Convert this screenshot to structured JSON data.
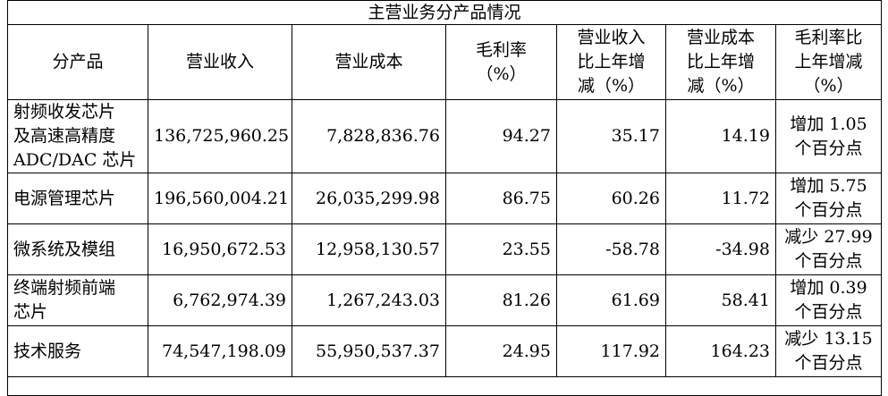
{
  "table_title": "主营业务分产品情况",
  "headers": [
    "分产品",
    "营业收入",
    "营业成本",
    "毛利率\n（%）",
    "营业收入\n比上年增\n减（%）",
    "营业成本\n比上年增\n减（%）",
    "毛利率比\n上年增减\n（%）"
  ],
  "rows": [
    {
      "product": "射频收发芯片\n及高速高精度\nADC/DAC 芯片",
      "revenue": "136,725,960.25",
      "cost": "7,828,836.76",
      "margin": "94.27",
      "rev_change": "35.17",
      "cost_change": "14.19",
      "margin_change": "增加 1.05\n个百分点"
    },
    {
      "product": "电源管理芯片",
      "revenue": "196,560,004.21",
      "cost": "26,035,299.98",
      "margin": "86.75",
      "rev_change": "60.26",
      "cost_change": "11.72",
      "margin_change": "增加 5.75\n个百分点"
    },
    {
      "product": "微系统及模组",
      "revenue": "16,950,672.53",
      "cost": "12,958,130.57",
      "margin": "23.55",
      "rev_change": "-58.78",
      "cost_change": "-34.98",
      "margin_change": "减少 27.99\n个百分点"
    },
    {
      "product": "终端射频前端\n芯片",
      "revenue": "6,762,974.39",
      "cost": "1,267,243.03",
      "margin": "81.26",
      "rev_change": "61.69",
      "cost_change": "58.41",
      "margin_change": "增加 0.39\n个百分点"
    },
    {
      "product": "技术服务",
      "revenue": "74,547,198.09",
      "cost": "55,950,537.37",
      "margin": "24.95",
      "rev_change": "117.92",
      "cost_change": "164.23",
      "margin_change": "减少 13.15\n个百分点"
    }
  ]
}
